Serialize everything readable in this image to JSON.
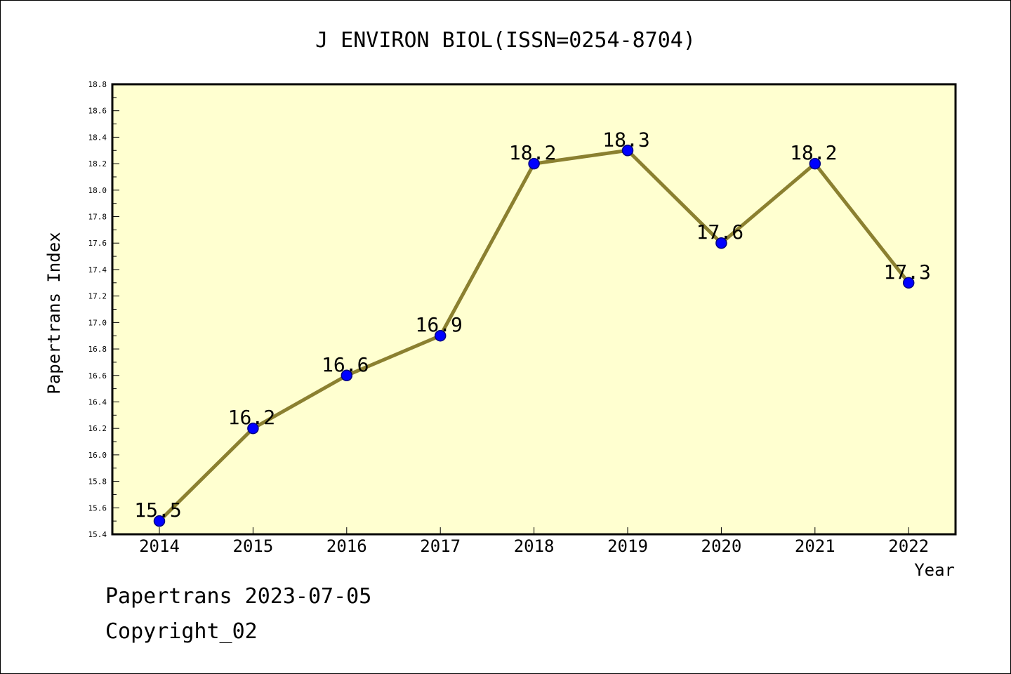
{
  "footer": {
    "line1": "Papertrans 2023-07-05",
    "line2": "Copyright_02"
  },
  "chart_data": {
    "type": "line",
    "title": "J ENVIRON BIOL(ISSN=0254-8704)",
    "xlabel": "Year",
    "ylabel": "Papertrans Index",
    "categories": [
      "2014",
      "2015",
      "2016",
      "2017",
      "2018",
      "2019",
      "2020",
      "2021",
      "2022"
    ],
    "values": [
      15.5,
      16.2,
      16.6,
      16.9,
      18.2,
      18.3,
      17.6,
      18.2,
      17.3
    ],
    "data_labels": [
      "15.5",
      "16.2",
      "16.6",
      "16.9",
      "18.2",
      "18.3",
      "17.6",
      "18.2",
      "17.3"
    ],
    "ylim": [
      15.4,
      18.8
    ],
    "yticks": [
      "15.4",
      "15.6",
      "15.8",
      "16.0",
      "16.2",
      "16.4",
      "16.6",
      "16.8",
      "17.0",
      "17.2",
      "17.4",
      "17.6",
      "17.8",
      "18.0",
      "18.2",
      "18.4",
      "18.6",
      "18.8"
    ],
    "grid": false,
    "colors": {
      "plot_background": "#ffffd0",
      "line": "#8b8030",
      "marker": "#0000ff",
      "marker_edge": "#000080",
      "axis": "#000000"
    }
  }
}
